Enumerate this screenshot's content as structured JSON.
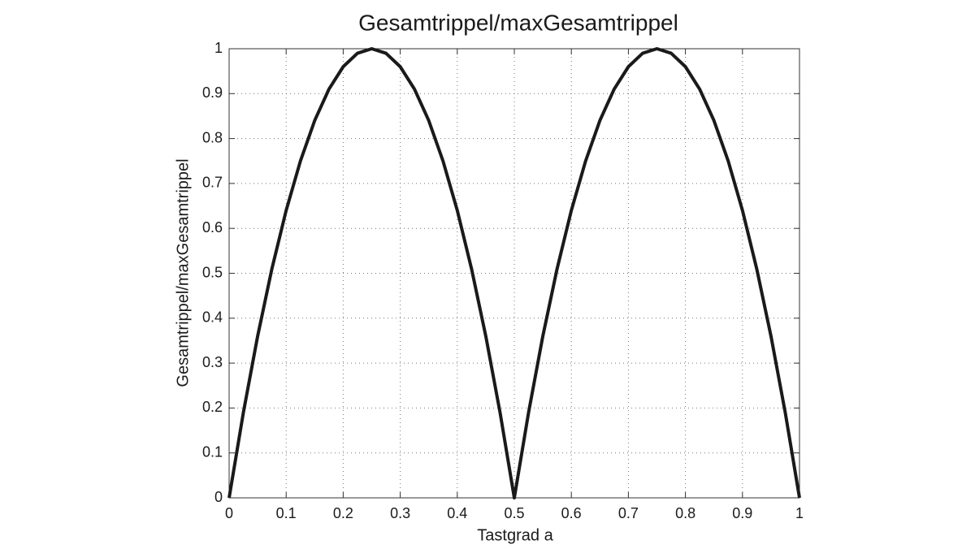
{
  "chart_data": {
    "type": "line",
    "title": "Gesamtrippel/maxGesamtrippel",
    "x_label": "Tastgrad a",
    "y_label": "Gesamtrippel/maxGesamtrippel",
    "x": [
      0,
      0.025,
      0.05,
      0.075,
      0.1,
      0.125,
      0.15,
      0.175,
      0.2,
      0.225,
      0.25,
      0.275,
      0.3,
      0.325,
      0.35,
      0.375,
      0.4,
      0.425,
      0.45,
      0.475,
      0.5,
      0.525,
      0.55,
      0.575,
      0.6,
      0.625,
      0.65,
      0.675,
      0.7,
      0.725,
      0.75,
      0.775,
      0.8,
      0.825,
      0.85,
      0.875,
      0.9,
      0.925,
      0.95,
      0.975,
      1
    ],
    "series": [
      {
        "color": "#1a1a1a",
        "values": [
          0,
          0.19,
          0.36,
          0.51,
          0.64,
          0.75,
          0.84,
          0.91,
          0.96,
          0.99,
          1,
          0.99,
          0.96,
          0.91,
          0.84,
          0.75,
          0.64,
          0.51,
          0.36,
          0.19,
          0,
          0.19,
          0.36,
          0.51,
          0.64,
          0.75,
          0.84,
          0.91,
          0.96,
          0.99,
          1,
          0.99,
          0.96,
          0.91,
          0.84,
          0.75,
          0.64,
          0.51,
          0.36,
          0.19,
          0
        ]
      }
    ],
    "xlim": [
      0,
      1
    ],
    "ylim": [
      0,
      1
    ],
    "xticks": [
      0,
      0.1,
      0.2,
      0.3,
      0.4,
      0.5,
      0.6,
      0.7,
      0.8,
      0.9,
      1
    ],
    "yticks": [
      0,
      0.1,
      0.2,
      0.3,
      0.4,
      0.5,
      0.6,
      0.7,
      0.8,
      0.9,
      1
    ],
    "grid": true
  }
}
